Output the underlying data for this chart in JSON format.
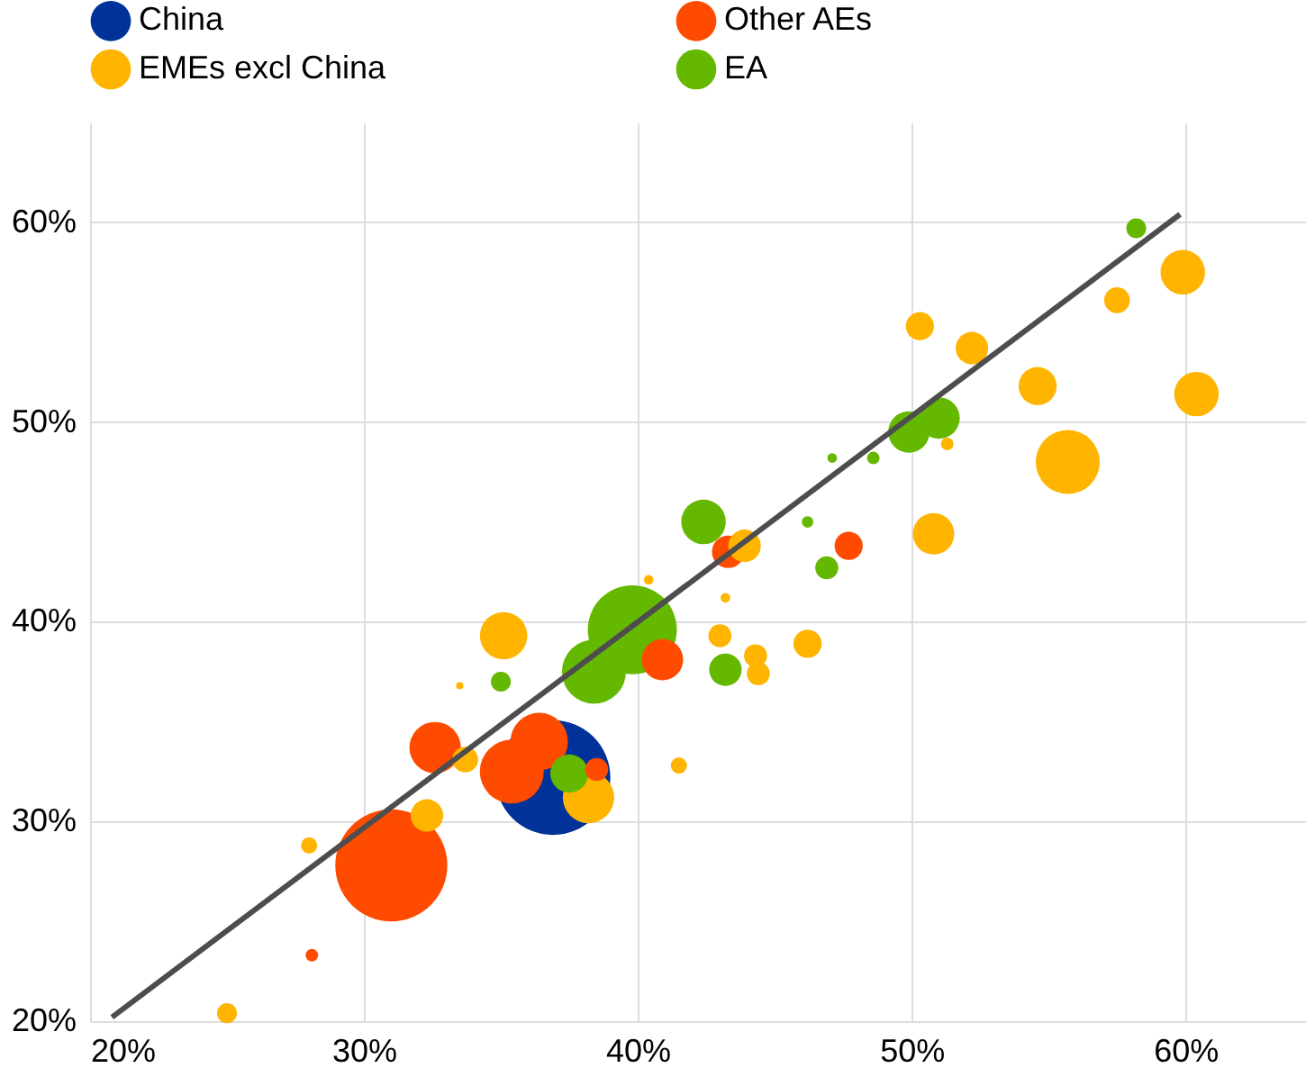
{
  "chart_data": {
    "type": "bubble",
    "xlim": [
      20,
      64.4
    ],
    "ylim": [
      20,
      65
    ],
    "xticks": [
      {
        "value": 20,
        "label": "20%"
      },
      {
        "value": 30,
        "label": "30%"
      },
      {
        "value": 40,
        "label": "40%"
      },
      {
        "value": 50,
        "label": "50%"
      },
      {
        "value": 60,
        "label": "60%"
      }
    ],
    "yticks": [
      {
        "value": 20,
        "label": "20%"
      },
      {
        "value": 30,
        "label": "30%"
      },
      {
        "value": 40,
        "label": "40%"
      },
      {
        "value": 50,
        "label": "50%"
      },
      {
        "value": 60,
        "label": "60%"
      }
    ],
    "grid": true,
    "legend": "top",
    "series": [
      {
        "name": "China",
        "color": "#003299",
        "x": [
          36.9
        ],
        "values": [
          32.2
        ],
        "sizes": [
          1
        ]
      },
      {
        "name": "Other AEs",
        "color": "#ff4b00",
        "x": [
          31.0,
          28.1,
          32.6,
          35.4,
          36.4,
          38.5,
          40.9,
          43.3,
          47.7
        ],
        "values": [
          27.8,
          23.3,
          33.7,
          32.5,
          34.0,
          32.6,
          38.1,
          43.5,
          43.8
        ],
        "sizes": [
          0.95,
          0.012,
          0.2,
          0.31,
          0.25,
          0.04,
          0.13,
          0.08,
          0.06
        ]
      },
      {
        "name": "EMEs excl China",
        "color": "#ffb400",
        "x": [
          25.0,
          28.0,
          32.3,
          35.1,
          33.5,
          33.7,
          38.2,
          41.5,
          40.4,
          43.2,
          43.0,
          44.3,
          44.4,
          46.2,
          50.8,
          43.9,
          51.3,
          50.3,
          52.2,
          54.6,
          55.7,
          57.5,
          59.9,
          60.4
        ],
        "values": [
          20.4,
          28.8,
          30.3,
          39.3,
          36.8,
          33.1,
          31.2,
          32.8,
          42.1,
          41.2,
          39.3,
          38.3,
          37.4,
          38.9,
          44.4,
          43.8,
          48.9,
          54.8,
          53.7,
          51.8,
          48.0,
          56.1,
          57.5,
          51.4
        ],
        "sizes": [
          0.03,
          0.02,
          0.08,
          0.17,
          0.004,
          0.05,
          0.2,
          0.02,
          0.007,
          0.007,
          0.04,
          0.04,
          0.04,
          0.06,
          0.13,
          0.08,
          0.012,
          0.06,
          0.08,
          0.11,
          0.31,
          0.05,
          0.15,
          0.15
        ]
      },
      {
        "name": "EA",
        "color": "#65b800",
        "x": [
          35.0,
          37.5,
          39.8,
          38.4,
          42.4,
          43.2,
          46.9,
          46.2,
          47.1,
          48.6,
          49.9,
          51.0,
          58.2
        ],
        "values": [
          37.0,
          32.4,
          39.6,
          37.5,
          45.0,
          37.6,
          42.7,
          45.0,
          48.2,
          48.2,
          49.5,
          50.2,
          59.7
        ],
        "sizes": [
          0.03,
          0.11,
          0.6,
          0.31,
          0.15,
          0.08,
          0.04,
          0.01,
          0.007,
          0.012,
          0.13,
          0.13,
          0.03
        ]
      },
      {
        "type": "line",
        "color": "#4d4d4d",
        "x": [
          20.8,
          59.8
        ],
        "values": [
          20.2,
          60.4
        ]
      }
    ]
  }
}
